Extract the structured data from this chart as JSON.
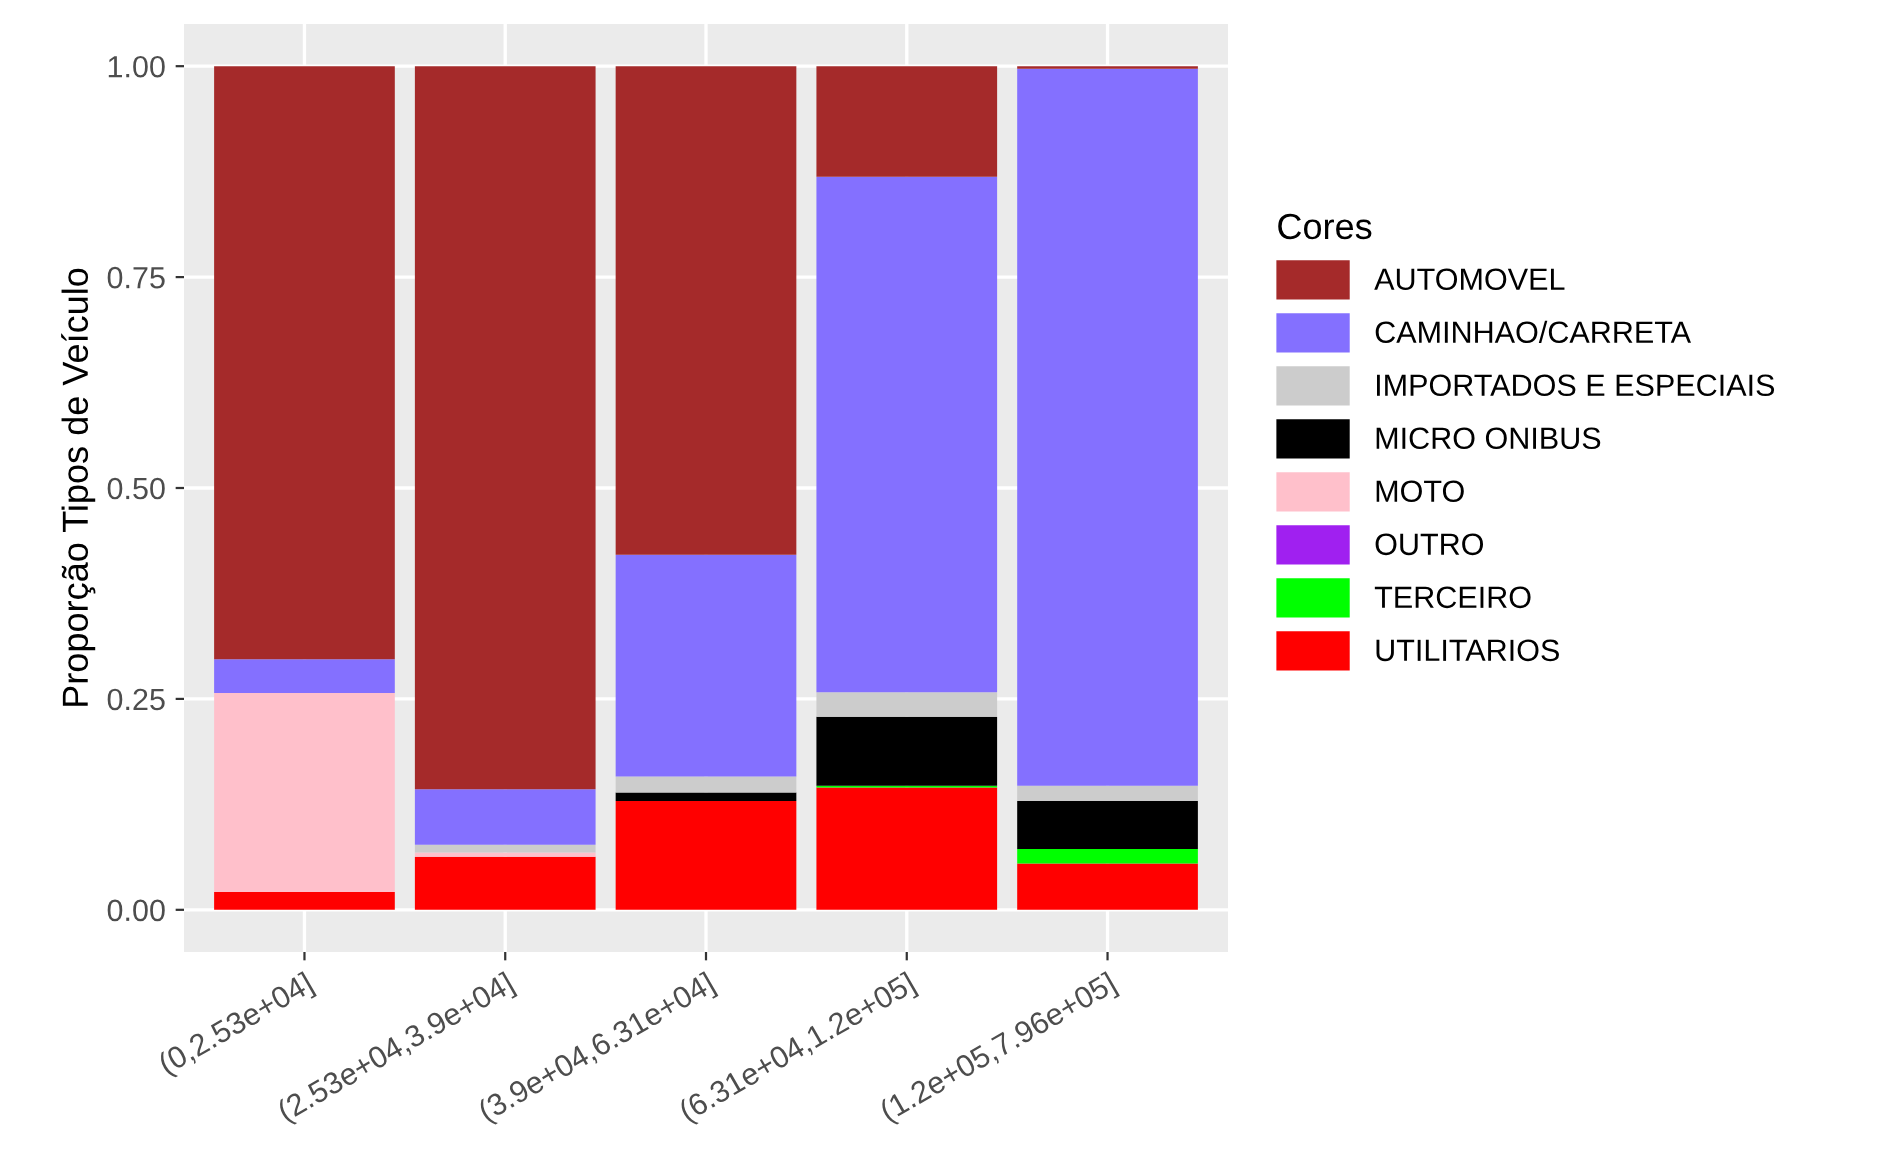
{
  "chart_data": {
    "type": "bar",
    "stacked": true,
    "ylabel": "Proporção Tipos de Veículo",
    "legend_title": "Cores",
    "legend": "right",
    "grid": true,
    "categories": [
      "(0,2.53e+04]",
      "(2.53e+04,3.9e+04]",
      "(3.9e+04,6.31e+04]",
      "(6.31e+04,1.2e+05]",
      "(1.2e+05,7.96e+05]"
    ],
    "ylim": [
      -0.05,
      1.05
    ],
    "yticks": [
      {
        "value": 0,
        "label": "0.00"
      },
      {
        "value": 0.25,
        "label": "0.25"
      },
      {
        "value": 0.5,
        "label": "0.50"
      },
      {
        "value": 0.75,
        "label": "0.75"
      },
      {
        "value": 1,
        "label": "1.00"
      }
    ],
    "series": [
      {
        "name": "UTILITARIOS",
        "color": "#ff0000",
        "values": [
          0.021,
          0.063,
          0.129,
          0.145,
          0.055
        ]
      },
      {
        "name": "TERCEIRO",
        "color": "#00ff00",
        "values": [
          0,
          0,
          0,
          0.002,
          0.017
        ]
      },
      {
        "name": "OUTRO",
        "color": "#a020f0",
        "values": [
          0,
          0,
          0,
          0,
          0
        ]
      },
      {
        "name": "MOTO",
        "color": "#ffc0cb",
        "values": [
          0.236,
          0.005,
          0,
          0,
          0
        ]
      },
      {
        "name": "MICRO ONIBUS",
        "color": "#000000",
        "values": [
          0,
          0,
          0.01,
          0.082,
          0.057
        ]
      },
      {
        "name": "IMPORTADOS E ESPECIAIS",
        "color": "#cccccc",
        "values": [
          0,
          0.009,
          0.019,
          0.029,
          0.018
        ]
      },
      {
        "name": "CAMINHAO/CARRETA",
        "color": "#8470ff",
        "values": [
          0.04,
          0.066,
          0.263,
          0.611,
          0.85
        ]
      },
      {
        "name": "AUTOMOVEL",
        "color": "#a52a2a",
        "values": [
          0.703,
          0.857,
          0.579,
          0.131,
          0.003
        ]
      }
    ]
  }
}
